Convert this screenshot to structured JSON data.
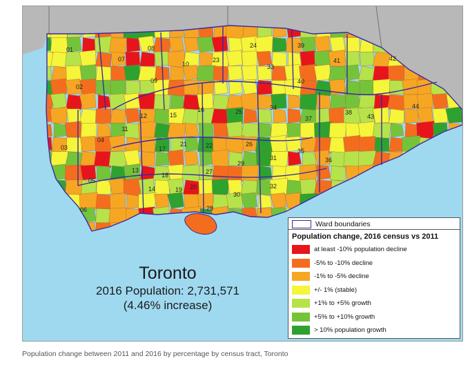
{
  "colors": {
    "water": "#9fd9f0",
    "outside": "#b8b8b8",
    "ward_border": "#3b2aa0",
    "classes": [
      "#e8141c",
      "#f46d1e",
      "#f6a623",
      "#f5f53a",
      "#b6e34a",
      "#74c43a",
      "#2ea22e"
    ]
  },
  "wards": [
    "01",
    "02",
    "03",
    "04",
    "05",
    "06",
    "07",
    "08",
    "09",
    "10",
    "11",
    "12",
    "13",
    "14",
    "15",
    "16",
    "17",
    "18",
    "19",
    "20",
    "21",
    "22",
    "23",
    "24",
    "25",
    "26",
    "27",
    "28",
    "29",
    "30",
    "31",
    "32",
    "33",
    "34",
    "35",
    "36",
    "37",
    "38",
    "39",
    "40",
    "41",
    "42",
    "43",
    "44"
  ],
  "title": {
    "city": "Toronto",
    "population": "2016 Population: 2,731,571",
    "change": "(4.46% increase)"
  },
  "legend": {
    "boundary_label": "Ward boundaries",
    "heading": "Population change, 2016 census vs 2011",
    "items": [
      "at least -10% population decline",
      "-5% to -10% decline",
      "-1% to -5% decline",
      "+/- 1% (stable)",
      "+1% to +5% growth",
      "+5% to +10% growth",
      "> 10% population growth"
    ]
  },
  "caption": "Population change between 2011 and 2016 by percentage by census tract, Toronto"
}
